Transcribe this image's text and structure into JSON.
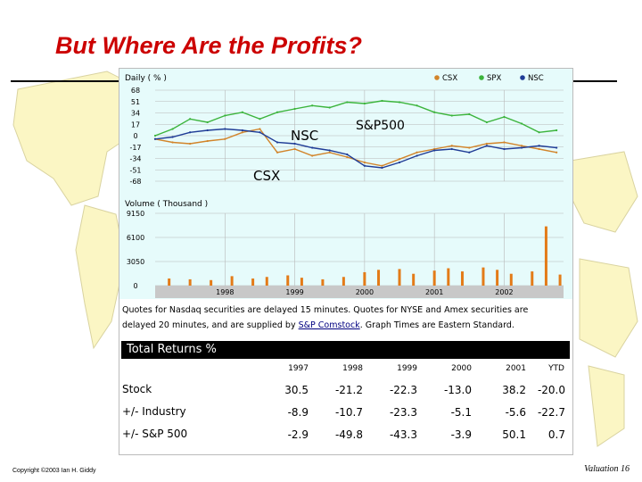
{
  "slide": {
    "title": "But Where Are the Profits?",
    "copyright": "Copyright ©2003 Ian H. Giddy",
    "page_label": "Valuation 16"
  },
  "colors": {
    "chart_bg": "#e6fbfb",
    "grid": "#b8b8b8",
    "csx": "#d2842a",
    "spx": "#3cb43c",
    "nsc": "#1f3c96",
    "volume": "#e37b18",
    "map_land": "#fbf6c4"
  },
  "chart_data": [
    {
      "type": "line",
      "header": "Daily ( % )",
      "legend": [
        "CSX",
        "SPX",
        "NSC"
      ],
      "legend_position": "top-right",
      "y_ticks": [
        "68",
        "51",
        "34",
        "17",
        "0",
        "-17",
        "-34",
        "-51",
        "-68"
      ],
      "ylim": [
        -68,
        68
      ],
      "annotations": [
        "NSC",
        "S&P500",
        "CSX"
      ],
      "grid": true,
      "series": [
        {
          "name": "CSX",
          "x": [
            1997.0,
            1997.25,
            1997.5,
            1997.75,
            1998.0,
            1998.25,
            1998.5,
            1998.75,
            1999.0,
            1999.25,
            1999.5,
            1999.75,
            2000.0,
            2000.25,
            2000.5,
            2000.75,
            2001.0,
            2001.25,
            2001.5,
            2001.75,
            2002.0,
            2002.25,
            2002.5,
            2002.75
          ],
          "y": [
            -5,
            -10,
            -12,
            -8,
            -5,
            5,
            10,
            -25,
            -20,
            -30,
            -25,
            -32,
            -40,
            -45,
            -35,
            -25,
            -20,
            -15,
            -18,
            -12,
            -10,
            -15,
            -20,
            -25
          ]
        },
        {
          "name": "SPX",
          "x": [
            1997.0,
            1997.25,
            1997.5,
            1997.75,
            1998.0,
            1998.25,
            1998.5,
            1998.75,
            1999.0,
            1999.25,
            1999.5,
            1999.75,
            2000.0,
            2000.25,
            2000.5,
            2000.75,
            2001.0,
            2001.25,
            2001.5,
            2001.75,
            2002.0,
            2002.25,
            2002.5,
            2002.75
          ],
          "y": [
            0,
            10,
            25,
            20,
            30,
            35,
            25,
            35,
            40,
            45,
            42,
            50,
            48,
            52,
            50,
            45,
            35,
            30,
            32,
            20,
            28,
            18,
            5,
            8
          ]
        },
        {
          "name": "NSC",
          "x": [
            1997.0,
            1997.25,
            1997.5,
            1997.75,
            1998.0,
            1998.25,
            1998.5,
            1998.75,
            1999.0,
            1999.25,
            1999.5,
            1999.75,
            2000.0,
            2000.25,
            2000.5,
            2000.75,
            2001.0,
            2001.25,
            2001.5,
            2001.75,
            2002.0,
            2002.25,
            2002.5,
            2002.75
          ],
          "y": [
            -5,
            -2,
            5,
            8,
            10,
            8,
            5,
            -10,
            -12,
            -18,
            -22,
            -28,
            -45,
            -48,
            -40,
            -30,
            -22,
            -20,
            -25,
            -15,
            -20,
            -18,
            -15,
            -18
          ]
        }
      ]
    },
    {
      "type": "bar",
      "header": "Volume ( Thousand )",
      "y_ticks": [
        "9150",
        "6100",
        "3050",
        "0"
      ],
      "ylim": [
        0,
        9150
      ],
      "x_ticks": [
        "1998",
        "1999",
        "2000",
        "2001",
        "2002"
      ],
      "series": [
        {
          "name": "Volume",
          "x": [
            1997.2,
            1997.5,
            1997.8,
            1998.1,
            1998.4,
            1998.6,
            1998.9,
            1999.1,
            1999.4,
            1999.7,
            2000.0,
            2000.2,
            2000.5,
            2000.7,
            2001.0,
            2001.2,
            2001.4,
            2001.7,
            2001.9,
            2002.1,
            2002.4,
            2002.6,
            2002.8
          ],
          "y": [
            900,
            800,
            700,
            1200,
            900,
            1100,
            1300,
            1000,
            800,
            1100,
            1700,
            2000,
            2100,
            1500,
            1900,
            2200,
            1800,
            2300,
            2000,
            1500,
            1800,
            7500,
            1400
          ]
        }
      ]
    },
    {
      "type": "table",
      "title": "Total Returns %",
      "columns": [
        "1997",
        "1998",
        "1999",
        "2000",
        "2001",
        "YTD"
      ],
      "rows": [
        {
          "label": "Stock",
          "values": [
            "30.5",
            "-21.2",
            "-22.3",
            "-13.0",
            "38.2",
            "-20.0"
          ]
        },
        {
          "label": "+/- Industry",
          "values": [
            "-8.9",
            "-10.7",
            "-23.3",
            "-5.1",
            "-5.6",
            "-22.7"
          ]
        },
        {
          "label": "+/- S&P 500",
          "values": [
            "-2.9",
            "-49.8",
            "-43.3",
            "-3.9",
            "50.1",
            "0.7"
          ]
        }
      ]
    }
  ],
  "notes": {
    "line1": "Quotes for Nasdaq securities are delayed 15 minutes. Quotes for NYSE and Amex securities are",
    "line2_pre": "delayed 20 minutes, and are supplied by ",
    "line2_link": "S&P Comstock",
    "line2_post": ". Graph Times are Eastern Standard."
  }
}
